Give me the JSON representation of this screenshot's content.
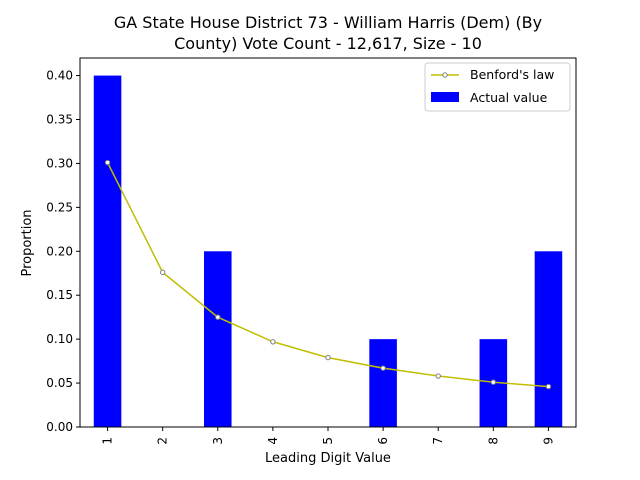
{
  "chart_data": {
    "type": "bar",
    "title_lines": [
      "GA State House District 73 - William Harris (Dem) (By",
      "County) Vote Count - 12,617, Size - 10"
    ],
    "xlabel": "Leading Digit Value",
    "ylabel": "Proportion",
    "categories": [
      "1",
      "2",
      "3",
      "4",
      "5",
      "6",
      "7",
      "8",
      "9"
    ],
    "ylim": [
      0,
      0.42
    ],
    "yticks": [
      "0.00",
      "0.05",
      "0.10",
      "0.15",
      "0.20",
      "0.25",
      "0.30",
      "0.35",
      "0.40"
    ],
    "series": [
      {
        "name": "Actual value",
        "kind": "bar",
        "color": "#0000ff",
        "values": [
          0.4,
          0.0,
          0.2,
          0.0,
          0.0,
          0.1,
          0.0,
          0.1,
          0.2
        ]
      },
      {
        "name": "Benford's law",
        "kind": "line",
        "color": "#bfbf00",
        "marker_color": "#808080",
        "values": [
          0.301,
          0.176,
          0.125,
          0.097,
          0.079,
          0.067,
          0.058,
          0.051,
          0.046
        ]
      }
    ],
    "grid": false,
    "legend_position": "top-right"
  }
}
